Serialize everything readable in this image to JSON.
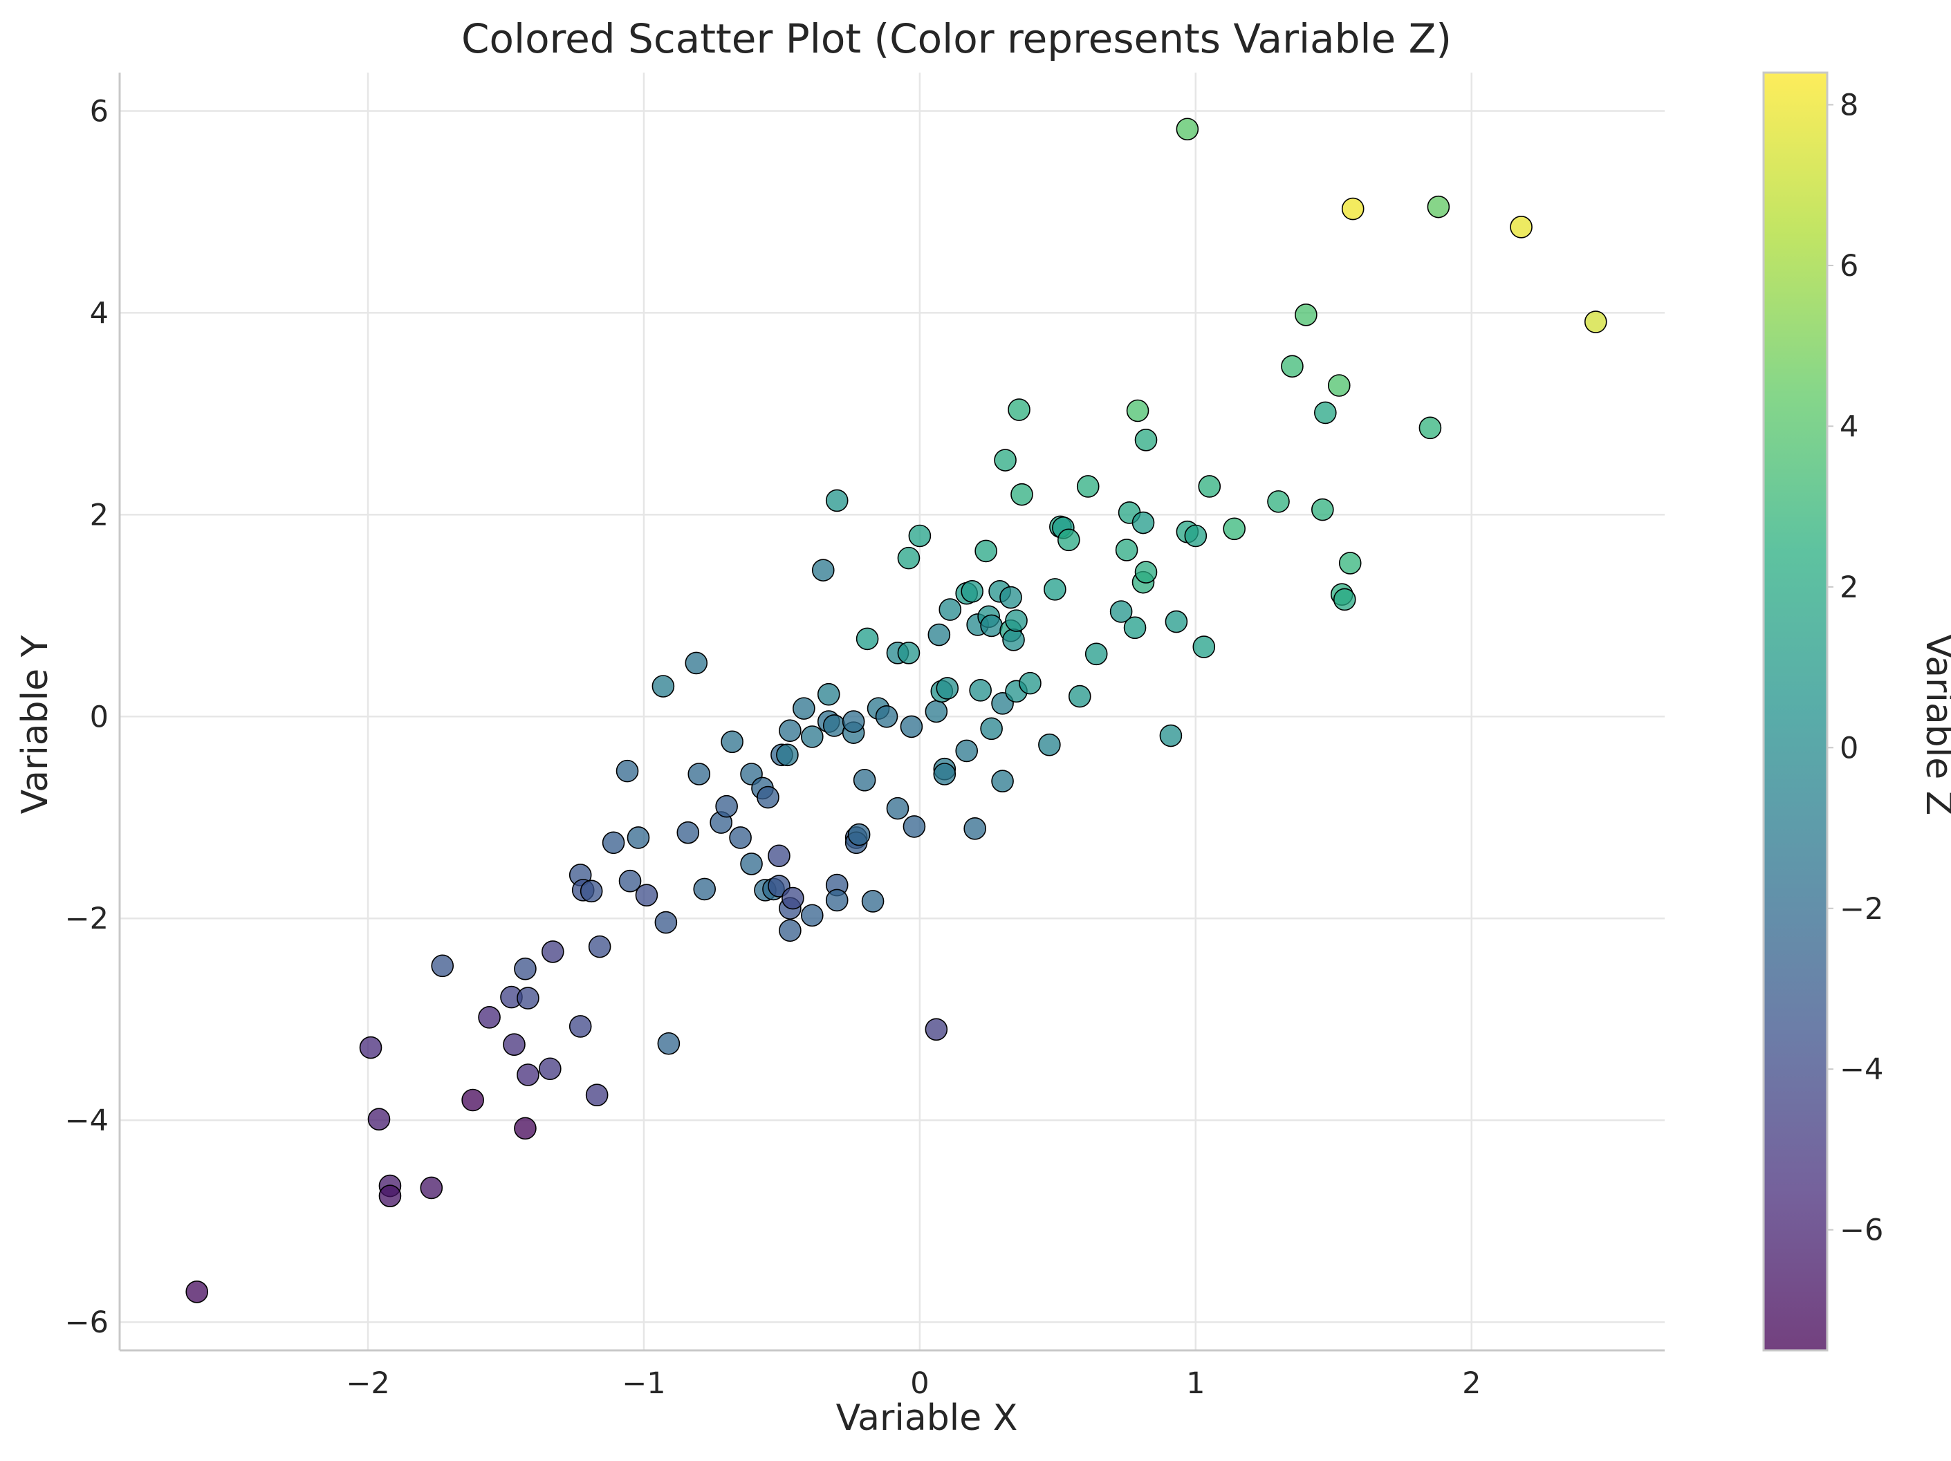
{
  "chart_data": {
    "type": "scatter",
    "title": "Colored Scatter Plot (Color represents Variable Z)",
    "xlabel": "Variable X",
    "ylabel": "Variable Y",
    "xlim": [
      -2.9,
      2.7
    ],
    "ylim": [
      -6.28,
      6.38
    ],
    "x_ticks": [
      -2,
      -1,
      0,
      1,
      2
    ],
    "y_ticks": [
      -6,
      -4,
      -2,
      0,
      2,
      4,
      6
    ],
    "grid": true,
    "colormap": "viridis",
    "colorbar": {
      "label": "Variable Z",
      "range": [
        -7.5,
        8.4
      ],
      "ticks": [
        -6,
        -4,
        -2,
        0,
        2,
        4,
        6,
        8
      ]
    },
    "points": [
      {
        "x": -2.62,
        "y": -5.7,
        "z": -7.0
      },
      {
        "x": -1.92,
        "y": -4.65,
        "z": -6.3
      },
      {
        "x": -1.92,
        "y": -4.75,
        "z": -6.6
      },
      {
        "x": -1.77,
        "y": -4.67,
        "z": -6.5
      },
      {
        "x": -1.96,
        "y": -3.99,
        "z": -6.0
      },
      {
        "x": -1.99,
        "y": -3.28,
        "z": -5.4
      },
      {
        "x": -1.62,
        "y": -3.8,
        "z": -7.2
      },
      {
        "x": -1.43,
        "y": -4.08,
        "z": -7.3
      },
      {
        "x": -1.73,
        "y": -2.47,
        "z": -2.7
      },
      {
        "x": -1.56,
        "y": -2.98,
        "z": -5.4
      },
      {
        "x": -1.48,
        "y": -2.78,
        "z": -4.0
      },
      {
        "x": -1.47,
        "y": -3.25,
        "z": -5.0
      },
      {
        "x": -1.43,
        "y": -2.5,
        "z": -3.0
      },
      {
        "x": -1.42,
        "y": -3.55,
        "z": -5.2
      },
      {
        "x": -1.42,
        "y": -2.79,
        "z": -3.6
      },
      {
        "x": -1.34,
        "y": -3.49,
        "z": -4.6
      },
      {
        "x": -1.33,
        "y": -2.33,
        "z": -4.3
      },
      {
        "x": -1.23,
        "y": -3.07,
        "z": -3.7
      },
      {
        "x": -1.17,
        "y": -3.75,
        "z": -4.4
      },
      {
        "x": -1.16,
        "y": -2.28,
        "z": -3.2
      },
      {
        "x": -1.23,
        "y": -1.57,
        "z": -2.7
      },
      {
        "x": -1.22,
        "y": -1.72,
        "z": -3.1
      },
      {
        "x": -1.19,
        "y": -1.73,
        "z": -2.9
      },
      {
        "x": -1.11,
        "y": -1.25,
        "z": -2.3
      },
      {
        "x": -1.05,
        "y": -1.63,
        "z": -2.6
      },
      {
        "x": -1.06,
        "y": -0.54,
        "z": -1.6
      },
      {
        "x": -1.02,
        "y": -1.2,
        "z": -1.6
      },
      {
        "x": -0.99,
        "y": -1.77,
        "z": -3.3
      },
      {
        "x": -0.92,
        "y": -2.04,
        "z": -2.6
      },
      {
        "x": -0.91,
        "y": -3.24,
        "z": -1.7
      },
      {
        "x": -0.93,
        "y": 0.3,
        "z": 0.0
      },
      {
        "x": -0.81,
        "y": 0.53,
        "z": -0.7
      },
      {
        "x": -0.8,
        "y": -0.57,
        "z": -1.5
      },
      {
        "x": -0.84,
        "y": -1.15,
        "z": -2.2
      },
      {
        "x": -0.78,
        "y": -1.71,
        "z": -1.6
      },
      {
        "x": -0.72,
        "y": -1.05,
        "z": -2.1
      },
      {
        "x": -0.7,
        "y": -0.89,
        "z": -2.3
      },
      {
        "x": -0.68,
        "y": -0.25,
        "z": -0.8
      },
      {
        "x": -0.65,
        "y": -1.2,
        "z": -2.2
      },
      {
        "x": -0.61,
        "y": -0.57,
        "z": -1.3
      },
      {
        "x": -0.61,
        "y": -1.46,
        "z": -1.4
      },
      {
        "x": -0.57,
        "y": -0.71,
        "z": -1.7
      },
      {
        "x": -0.56,
        "y": -1.72,
        "z": -1.1
      },
      {
        "x": -0.55,
        "y": -0.8,
        "z": -2.3
      },
      {
        "x": -0.53,
        "y": -1.71,
        "z": -1.2
      },
      {
        "x": -0.51,
        "y": -1.68,
        "z": -2.9
      },
      {
        "x": -0.51,
        "y": -1.38,
        "z": -3.6
      },
      {
        "x": -0.5,
        "y": -0.38,
        "z": -1.7
      },
      {
        "x": -0.48,
        "y": -0.38,
        "z": -0.3
      },
      {
        "x": -0.47,
        "y": -0.14,
        "z": -0.9
      },
      {
        "x": -0.47,
        "y": -1.9,
        "z": -2.9
      },
      {
        "x": -0.47,
        "y": -2.12,
        "z": -2.2
      },
      {
        "x": -0.46,
        "y": -1.8,
        "z": -3.6
      },
      {
        "x": -0.42,
        "y": 0.08,
        "z": -0.7
      },
      {
        "x": -0.39,
        "y": -0.2,
        "z": -0.4
      },
      {
        "x": -0.39,
        "y": -1.97,
        "z": -2.0
      },
      {
        "x": -0.35,
        "y": 1.45,
        "z": -0.4
      },
      {
        "x": -0.33,
        "y": 0.22,
        "z": 0.2
      },
      {
        "x": -0.33,
        "y": -0.05,
        "z": -1.0
      },
      {
        "x": -0.31,
        "y": -0.09,
        "z": -0.8
      },
      {
        "x": -0.3,
        "y": 2.14,
        "z": 1.7
      },
      {
        "x": -0.3,
        "y": -1.67,
        "z": -2.5
      },
      {
        "x": -0.3,
        "y": -1.82,
        "z": -1.9
      },
      {
        "x": -0.24,
        "y": -0.16,
        "z": -0.6
      },
      {
        "x": -0.24,
        "y": -0.05,
        "z": -1.1
      },
      {
        "x": -0.23,
        "y": -1.2,
        "z": -2.5
      },
      {
        "x": -0.23,
        "y": -1.25,
        "z": -2.3
      },
      {
        "x": -0.22,
        "y": -1.17,
        "z": -1.6
      },
      {
        "x": -0.2,
        "y": -0.63,
        "z": -1.1
      },
      {
        "x": -0.19,
        "y": 0.77,
        "z": 2.4
      },
      {
        "x": -0.17,
        "y": -1.83,
        "z": -1.5
      },
      {
        "x": -0.15,
        "y": 0.08,
        "z": -0.4
      },
      {
        "x": -0.12,
        "y": 0.0,
        "z": -0.9
      },
      {
        "x": -0.08,
        "y": 0.63,
        "z": 0.9
      },
      {
        "x": -0.08,
        "y": -0.91,
        "z": -1.3
      },
      {
        "x": -0.04,
        "y": 0.63,
        "z": 1.7
      },
      {
        "x": -0.04,
        "y": 1.57,
        "z": 2.8
      },
      {
        "x": -0.03,
        "y": -0.1,
        "z": -1.0
      },
      {
        "x": -0.02,
        "y": -1.09,
        "z": -1.9
      },
      {
        "x": 0.0,
        "y": 1.79,
        "z": 2.7
      },
      {
        "x": 0.06,
        "y": -3.1,
        "z": -4.3
      },
      {
        "x": 0.06,
        "y": 0.05,
        "z": -0.3
      },
      {
        "x": 0.07,
        "y": 0.81,
        "z": 0.2
      },
      {
        "x": 0.08,
        "y": 0.25,
        "z": 1.6
      },
      {
        "x": 0.09,
        "y": -0.52,
        "z": -0.2
      },
      {
        "x": 0.09,
        "y": -0.57,
        "z": -0.4
      },
      {
        "x": 0.1,
        "y": 0.28,
        "z": 1.4
      },
      {
        "x": 0.11,
        "y": 1.06,
        "z": 1.0
      },
      {
        "x": 0.17,
        "y": -0.34,
        "z": -0.4
      },
      {
        "x": 0.17,
        "y": 1.22,
        "z": 2.3
      },
      {
        "x": 0.19,
        "y": 1.24,
        "z": 2.2
      },
      {
        "x": 0.2,
        "y": -1.11,
        "z": -1.3
      },
      {
        "x": 0.21,
        "y": 0.91,
        "z": 0.9
      },
      {
        "x": 0.22,
        "y": 0.26,
        "z": 1.4
      },
      {
        "x": 0.24,
        "y": 1.64,
        "z": 3.1
      },
      {
        "x": 0.25,
        "y": 0.99,
        "z": 1.5
      },
      {
        "x": 0.26,
        "y": -0.12,
        "z": 0.5
      },
      {
        "x": 0.26,
        "y": 0.9,
        "z": 1.0
      },
      {
        "x": 0.29,
        "y": 1.24,
        "z": 1.5
      },
      {
        "x": 0.3,
        "y": 0.13,
        "z": 0.1
      },
      {
        "x": 0.3,
        "y": -0.64,
        "z": -0.3
      },
      {
        "x": 0.31,
        "y": 2.54,
        "z": 3.4
      },
      {
        "x": 0.33,
        "y": 1.18,
        "z": 1.3
      },
      {
        "x": 0.33,
        "y": 0.85,
        "z": 2.8
      },
      {
        "x": 0.34,
        "y": 0.76,
        "z": 1.2
      },
      {
        "x": 0.35,
        "y": 0.95,
        "z": 1.9
      },
      {
        "x": 0.35,
        "y": 0.25,
        "z": 1.6
      },
      {
        "x": 0.36,
        "y": 3.04,
        "z": 3.8
      },
      {
        "x": 0.37,
        "y": 2.2,
        "z": 3.7
      },
      {
        "x": 0.4,
        "y": 0.33,
        "z": 1.9
      },
      {
        "x": 0.47,
        "y": -0.28,
        "z": 0.4
      },
      {
        "x": 0.49,
        "y": 1.26,
        "z": 2.4
      },
      {
        "x": 0.51,
        "y": 1.88,
        "z": 2.8
      },
      {
        "x": 0.52,
        "y": 1.87,
        "z": 2.4
      },
      {
        "x": 0.54,
        "y": 1.75,
        "z": 3.2
      },
      {
        "x": 0.58,
        "y": 0.2,
        "z": 1.9
      },
      {
        "x": 0.61,
        "y": 2.28,
        "z": 3.6
      },
      {
        "x": 0.64,
        "y": 0.62,
        "z": 2.2
      },
      {
        "x": 0.73,
        "y": 1.04,
        "z": 1.7
      },
      {
        "x": 0.75,
        "y": 1.65,
        "z": 3.4
      },
      {
        "x": 0.76,
        "y": 2.02,
        "z": 3.0
      },
      {
        "x": 0.78,
        "y": 0.88,
        "z": 2.4
      },
      {
        "x": 0.79,
        "y": 3.03,
        "z": 5.2
      },
      {
        "x": 0.81,
        "y": 1.33,
        "z": 3.7
      },
      {
        "x": 0.81,
        "y": 1.92,
        "z": 2.2
      },
      {
        "x": 0.82,
        "y": 2.74,
        "z": 3.4
      },
      {
        "x": 0.82,
        "y": 1.43,
        "z": 3.5
      },
      {
        "x": 0.91,
        "y": -0.19,
        "z": 1.4
      },
      {
        "x": 0.93,
        "y": 0.94,
        "z": 2.1
      },
      {
        "x": 0.97,
        "y": 5.82,
        "z": 5.6
      },
      {
        "x": 0.97,
        "y": 1.83,
        "z": 3.0
      },
      {
        "x": 1.0,
        "y": 1.79,
        "z": 2.7
      },
      {
        "x": 1.03,
        "y": 0.69,
        "z": 2.6
      },
      {
        "x": 1.05,
        "y": 2.28,
        "z": 3.8
      },
      {
        "x": 1.14,
        "y": 1.86,
        "z": 4.4
      },
      {
        "x": 1.3,
        "y": 2.13,
        "z": 3.9
      },
      {
        "x": 1.35,
        "y": 3.47,
        "z": 4.7
      },
      {
        "x": 1.4,
        "y": 3.98,
        "z": 5.2
      },
      {
        "x": 1.46,
        "y": 2.05,
        "z": 3.9
      },
      {
        "x": 1.47,
        "y": 3.01,
        "z": 3.1
      },
      {
        "x": 1.52,
        "y": 3.28,
        "z": 5.3
      },
      {
        "x": 1.53,
        "y": 1.21,
        "z": 3.6
      },
      {
        "x": 1.54,
        "y": 1.16,
        "z": 3.2
      },
      {
        "x": 1.56,
        "y": 1.52,
        "z": 4.2
      },
      {
        "x": 1.57,
        "y": 5.03,
        "z": 8.2
      },
      {
        "x": 1.85,
        "y": 2.86,
        "z": 4.1
      },
      {
        "x": 1.88,
        "y": 5.05,
        "z": 5.9
      },
      {
        "x": 2.18,
        "y": 4.85,
        "z": 8.1
      },
      {
        "x": 2.45,
        "y": 3.91,
        "z": 7.8
      }
    ]
  }
}
